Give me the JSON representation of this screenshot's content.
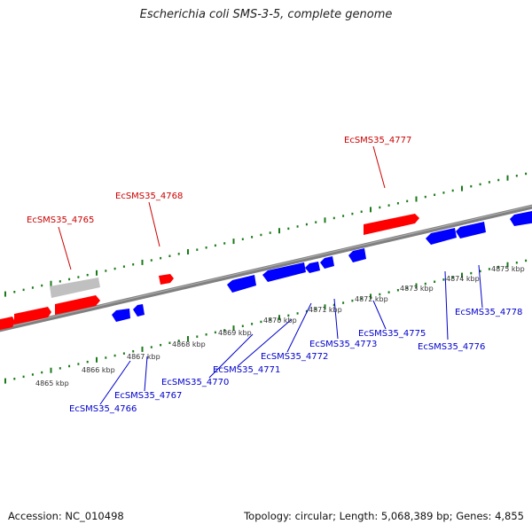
{
  "title": "Escherichia coli SMS-3-5, complete genome",
  "footer": {
    "accession": "Accession: NC_010498",
    "stats": "Topology: circular; Length: 5,068,389 bp; Genes: 4,855"
  },
  "colors": {
    "forward_gene": "#ff0000",
    "reverse_gene": "#0000ff",
    "pseudo_gene": "#c0c0c0",
    "backbone": "#808080",
    "ticks": "#1a7a1a",
    "forward_label": "#cc0000",
    "reverse_label": "#0000cc"
  },
  "ticks": {
    "lower": [
      "4865 kbp",
      "4866 kbp",
      "4867 kbp",
      "4868 kbp",
      "4869 kbp",
      "4870 kbp",
      "4871 kbp",
      "4872 kbp",
      "4873 kbp",
      "4874 kbp",
      "4875 kbp"
    ]
  },
  "gene_labels": {
    "forward": [
      "EcSMS35_4765",
      "EcSMS35_4768",
      "EcSMS35_4777"
    ],
    "reverse": [
      "EcSMS35_4766",
      "EcSMS35_4767",
      "EcSMS35_4770",
      "EcSMS35_4771",
      "EcSMS35_4772",
      "EcSMS35_4773",
      "EcSMS35_4775",
      "EcSMS35_4776",
      "EcSMS35_4778"
    ]
  }
}
